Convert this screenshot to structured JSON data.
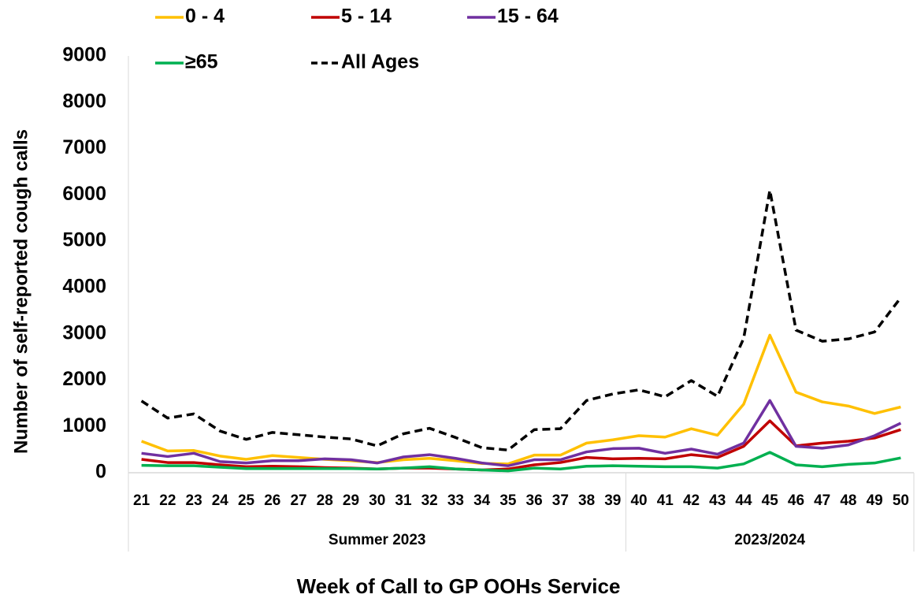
{
  "chart_data": {
    "type": "line",
    "y_label": "Number of self-reported cough calls",
    "x_label": "Week of Call to GP OOHs Service",
    "category_groups": [
      {
        "label": "Summer 2023",
        "categories": [
          "21",
          "22",
          "23",
          "24",
          "25",
          "26",
          "27",
          "28",
          "29",
          "30",
          "31",
          "32",
          "33",
          "34",
          "35",
          "36",
          "37",
          "38",
          "39"
        ]
      },
      {
        "label": "2023/2024",
        "categories": [
          "40",
          "41",
          "42",
          "43",
          "44",
          "45",
          "46",
          "47",
          "48",
          "49",
          "50"
        ]
      }
    ],
    "ylim": [
      0,
      9000
    ],
    "yticks": [
      0,
      1000,
      2000,
      3000,
      4000,
      5000,
      6000,
      7000,
      8000,
      9000
    ],
    "grid": false,
    "series": [
      {
        "name": "0 - 4",
        "color": "#ffc000",
        "values": [
          680,
          470,
          480,
          360,
          290,
          370,
          330,
          290,
          260,
          220,
          280,
          310,
          260,
          200,
          190,
          380,
          380,
          640,
          710,
          800,
          770,
          950,
          810,
          1480,
          2970,
          1740,
          1530,
          1440,
          1280,
          1420
        ]
      },
      {
        "name": "5 - 14",
        "color": "#c00000",
        "values": [
          290,
          220,
          220,
          170,
          130,
          140,
          130,
          110,
          100,
          80,
          100,
          100,
          80,
          60,
          80,
          170,
          220,
          330,
          300,
          310,
          300,
          390,
          330,
          570,
          1120,
          580,
          640,
          680,
          750,
          930
        ]
      },
      {
        "name": "15 - 64",
        "color": "#7030a0",
        "values": [
          420,
          350,
          420,
          240,
          210,
          260,
          260,
          300,
          280,
          210,
          340,
          390,
          310,
          210,
          150,
          280,
          280,
          450,
          520,
          530,
          420,
          510,
          400,
          640,
          1560,
          570,
          530,
          600,
          800,
          1070
        ]
      },
      {
        "name": "≥65",
        "color": "#00b050",
        "values": [
          160,
          150,
          150,
          120,
          90,
          90,
          90,
          90,
          90,
          80,
          100,
          130,
          80,
          60,
          40,
          100,
          80,
          140,
          150,
          140,
          130,
          130,
          100,
          190,
          440,
          170,
          130,
          180,
          210,
          320
        ]
      },
      {
        "name": "All Ages",
        "color": "#000000",
        "dashed": true,
        "values": [
          1550,
          1180,
          1270,
          900,
          720,
          870,
          820,
          770,
          730,
          580,
          840,
          960,
          760,
          540,
          490,
          930,
          950,
          1560,
          1700,
          1790,
          1640,
          1990,
          1650,
          2900,
          6100,
          3080,
          2840,
          2890,
          3040,
          3780
        ]
      }
    ]
  }
}
